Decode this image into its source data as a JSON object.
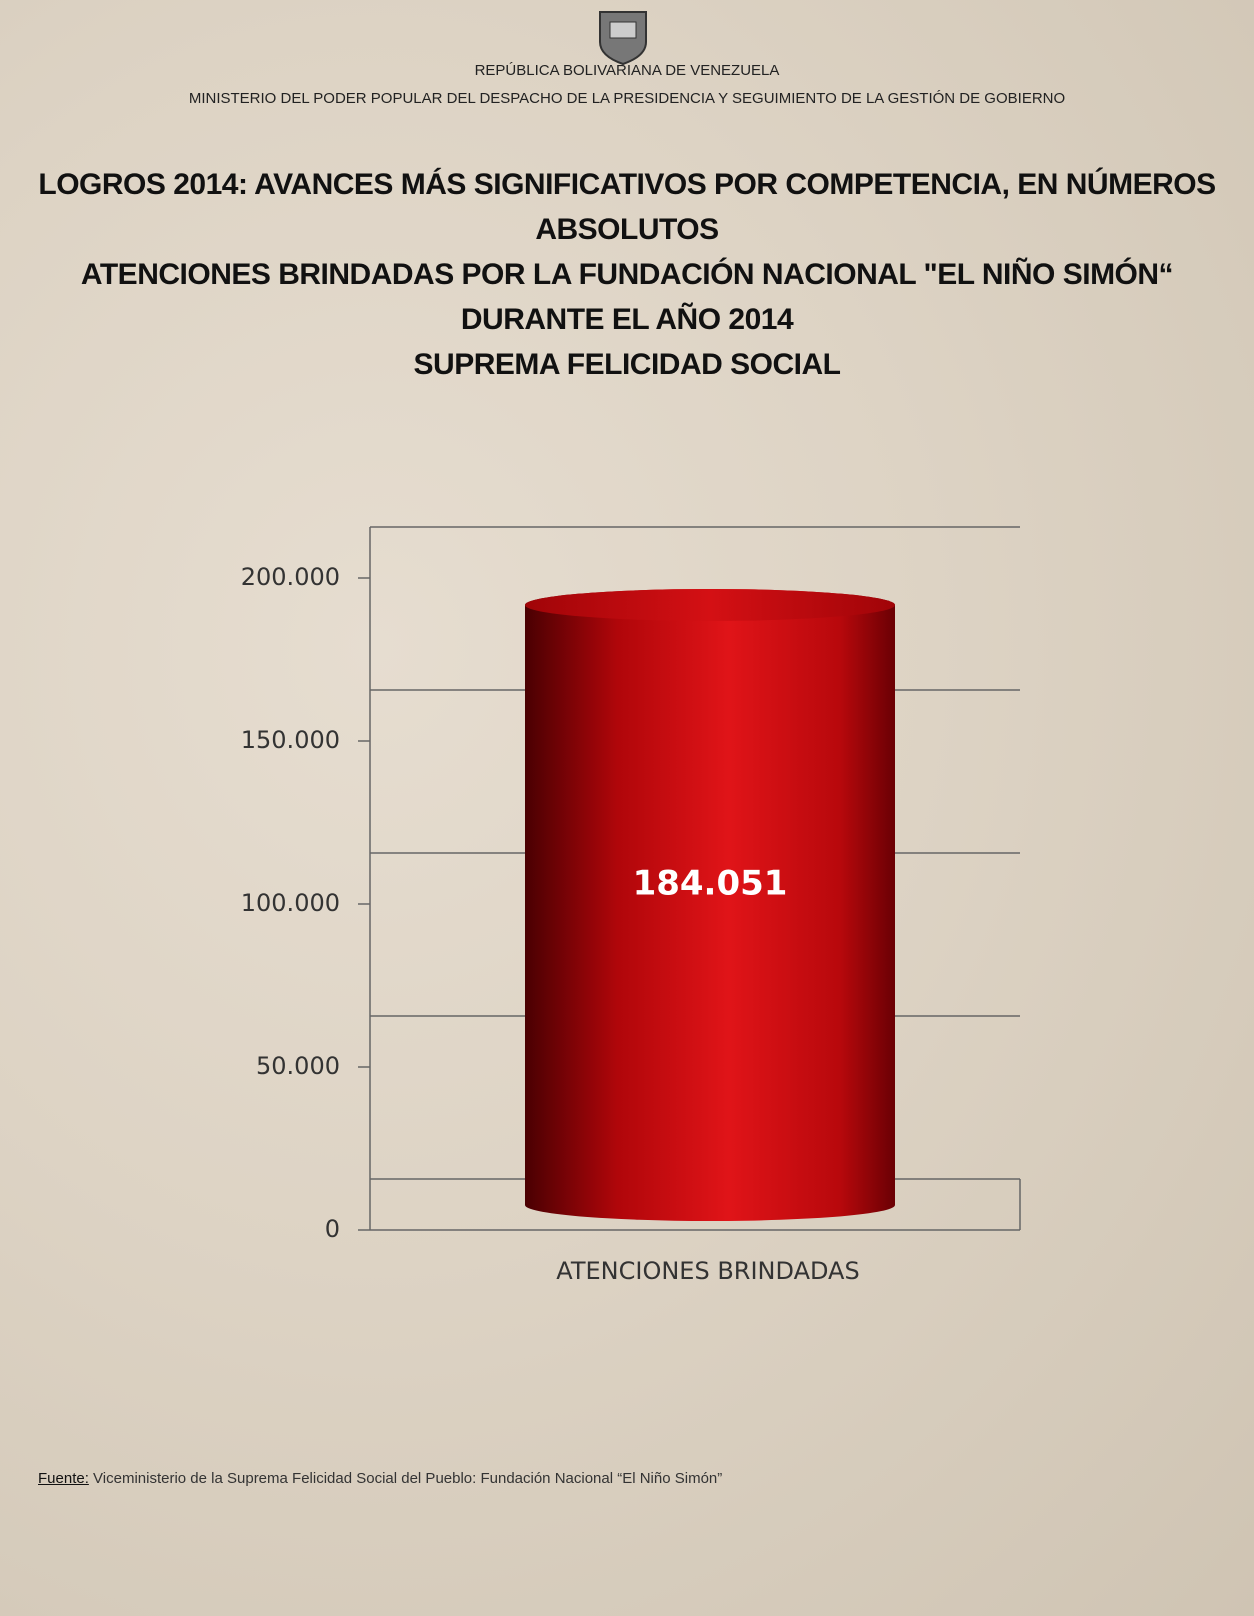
{
  "header": {
    "country": "REPÚBLICA BOLIVARIANA DE VENEZUELA",
    "ministry": "MINISTERIO DEL PODER POPULAR DEL DESPACHO DE LA PRESIDENCIA Y SEGUIMIENTO DE LA GESTIÓN DE GOBIERNO"
  },
  "chart_data": {
    "type": "bar",
    "title": [
      "LOGROS 2014: AVANCES MÁS SIGNIFICATIVOS POR COMPETENCIA, EN NÚMEROS ABSOLUTOS",
      "ATENCIONES BRINDADAS POR LA FUNDACIÓN NACIONAL \"EL NIÑO SIMÓN“ DURANTE EL AÑO 2014",
      "SUPREMA FELICIDAD SOCIAL"
    ],
    "categories": [
      "ATENCIONES BRINDADAS"
    ],
    "values": [
      184051
    ],
    "value_labels": [
      "184.051"
    ],
    "color": "#c8080c",
    "ylim": [
      0,
      200000
    ],
    "yticks": [
      0,
      {
        "value": 50000,
        "label": "50.000"
      },
      {
        "value": 100000,
        "label": "100.000"
      },
      {
        "value": 150000,
        "label": "150.000"
      },
      {
        "value": 200000,
        "label": "200.000"
      }
    ],
    "grid": true
  },
  "source": {
    "label": "Fuente:",
    "text": "Viceministerio de la Suprema Felicidad Social del Pueblo: Fundación Nacional “El Niño Simón”"
  }
}
